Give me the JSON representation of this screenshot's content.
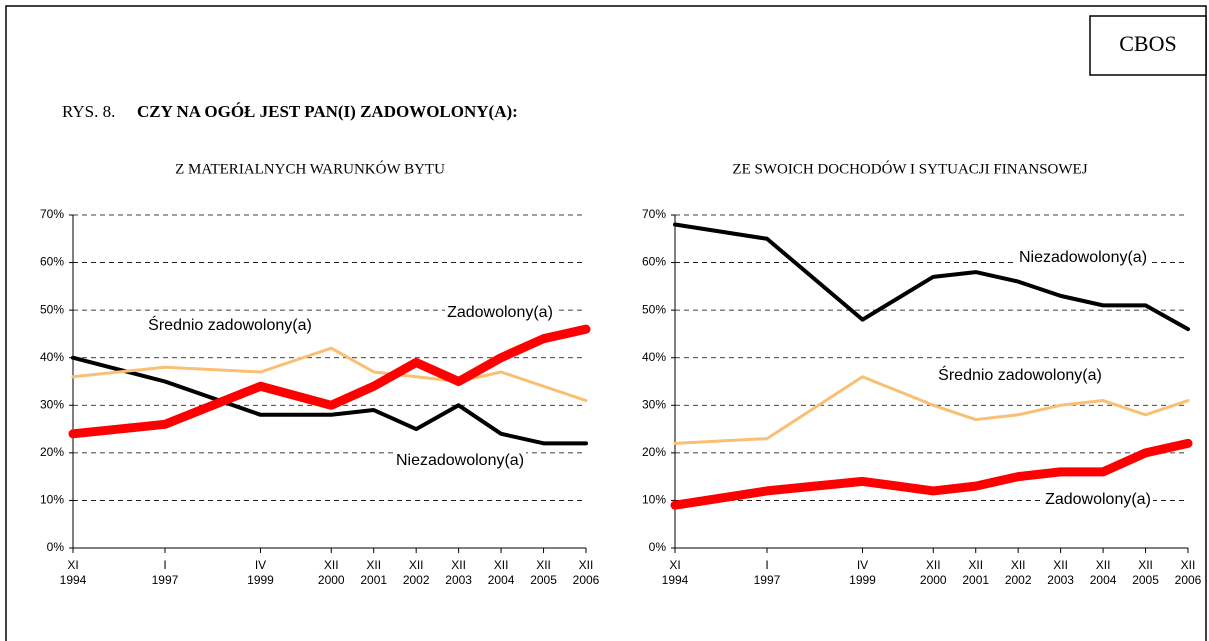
{
  "header": {
    "badge": "CBOS",
    "figure": "RYS. 8.",
    "title": "CZY NA OGÓŁ JEST PAN(I) ZADOWOLONY(A):"
  },
  "chart_data": [
    {
      "type": "line",
      "title": "Z MATERIALNYCH WARUNKÓW BYTU",
      "x": [
        "1994-11",
        "1997-01",
        "1999-04",
        "2000-12",
        "2001-12",
        "2002-12",
        "2003-12",
        "2004-12",
        "2005-12",
        "2006-12"
      ],
      "xlim": [
        "1994-11",
        "2006-12"
      ],
      "xticks": [
        {
          "value": "1994-11",
          "label": [
            "XI",
            "1994"
          ]
        },
        {
          "value": "1997-01",
          "label": [
            "I",
            "1997"
          ]
        },
        {
          "value": "1999-04",
          "label": [
            "IV",
            "1999"
          ]
        },
        {
          "value": "2000-12",
          "label": [
            "XII",
            "2000"
          ]
        },
        {
          "value": "2001-12",
          "label": [
            "XII",
            "2001"
          ]
        },
        {
          "value": "2002-12",
          "label": [
            "XII",
            "2002"
          ]
        },
        {
          "value": "2003-12",
          "label": [
            "XII",
            "2003"
          ]
        },
        {
          "value": "2004-12",
          "label": [
            "XII",
            "2004"
          ]
        },
        {
          "value": "2005-12",
          "label": [
            "XII",
            "2005"
          ]
        },
        {
          "value": "2006-12",
          "label": [
            "XII",
            "2006"
          ]
        }
      ],
      "ylim": [
        0,
        70
      ],
      "yticks": [
        {
          "value": 0,
          "label": "0%"
        },
        {
          "value": 10,
          "label": "10%"
        },
        {
          "value": 20,
          "label": "20%"
        },
        {
          "value": 30,
          "label": "30%"
        },
        {
          "value": 40,
          "label": "40%"
        },
        {
          "value": 50,
          "label": "50%"
        },
        {
          "value": 60,
          "label": "60%"
        },
        {
          "value": 70,
          "label": "70%"
        }
      ],
      "grid": true,
      "series": [
        {
          "name": "Niezadowolony(a)",
          "color": "#000000",
          "values": [
            40,
            35,
            28,
            28,
            29,
            25,
            30,
            24,
            22,
            22
          ]
        },
        {
          "name": "Średnio zadowolony(a)",
          "color": "#fabf73",
          "values": [
            36,
            38,
            37,
            42,
            37,
            36,
            35,
            37,
            34,
            31
          ]
        },
        {
          "name": "Zadowolony(a)",
          "color": "#ff0000",
          "values": [
            24,
            26,
            34,
            30,
            34,
            39,
            35,
            40,
            44,
            46
          ]
        }
      ]
    },
    {
      "type": "line",
      "title": "ZE SWOICH DOCHODÓW I SYTUACJI FINANSOWEJ",
      "x": [
        "1994-11",
        "1997-01",
        "1999-04",
        "2000-12",
        "2001-12",
        "2002-12",
        "2003-12",
        "2004-12",
        "2005-12",
        "2006-12"
      ],
      "xlim": [
        "1994-11",
        "2006-12"
      ],
      "xticks": [
        {
          "value": "1994-11",
          "label": [
            "XI",
            "1994"
          ]
        },
        {
          "value": "1997-01",
          "label": [
            "I",
            "1997"
          ]
        },
        {
          "value": "1999-04",
          "label": [
            "IV",
            "1999"
          ]
        },
        {
          "value": "2000-12",
          "label": [
            "XII",
            "2000"
          ]
        },
        {
          "value": "2001-12",
          "label": [
            "XII",
            "2001"
          ]
        },
        {
          "value": "2002-12",
          "label": [
            "XII",
            "2002"
          ]
        },
        {
          "value": "2003-12",
          "label": [
            "XII",
            "2003"
          ]
        },
        {
          "value": "2004-12",
          "label": [
            "XII",
            "2004"
          ]
        },
        {
          "value": "2005-12",
          "label": [
            "XII",
            "2005"
          ]
        },
        {
          "value": "2006-12",
          "label": [
            "XII",
            "2006"
          ]
        }
      ],
      "ylim": [
        0,
        70
      ],
      "yticks": [
        {
          "value": 0,
          "label": "0%"
        },
        {
          "value": 10,
          "label": "10%"
        },
        {
          "value": 20,
          "label": "20%"
        },
        {
          "value": 30,
          "label": "30%"
        },
        {
          "value": 40,
          "label": "40%"
        },
        {
          "value": 50,
          "label": "50%"
        },
        {
          "value": 60,
          "label": "60%"
        },
        {
          "value": 70,
          "label": "70%"
        }
      ],
      "grid": true,
      "series": [
        {
          "name": "Niezadowolony(a)",
          "color": "#000000",
          "values": [
            68,
            65,
            48,
            57,
            58,
            56,
            53,
            51,
            51,
            46
          ]
        },
        {
          "name": "Średnio zadowolony(a)",
          "color": "#fabf73",
          "values": [
            22,
            23,
            36,
            30,
            27,
            28,
            30,
            31,
            28,
            31
          ]
        },
        {
          "name": "Zadowolony(a)",
          "color": "#ff0000",
          "values": [
            9,
            12,
            14,
            12,
            13,
            15,
            16,
            16,
            20,
            22
          ]
        }
      ]
    }
  ]
}
